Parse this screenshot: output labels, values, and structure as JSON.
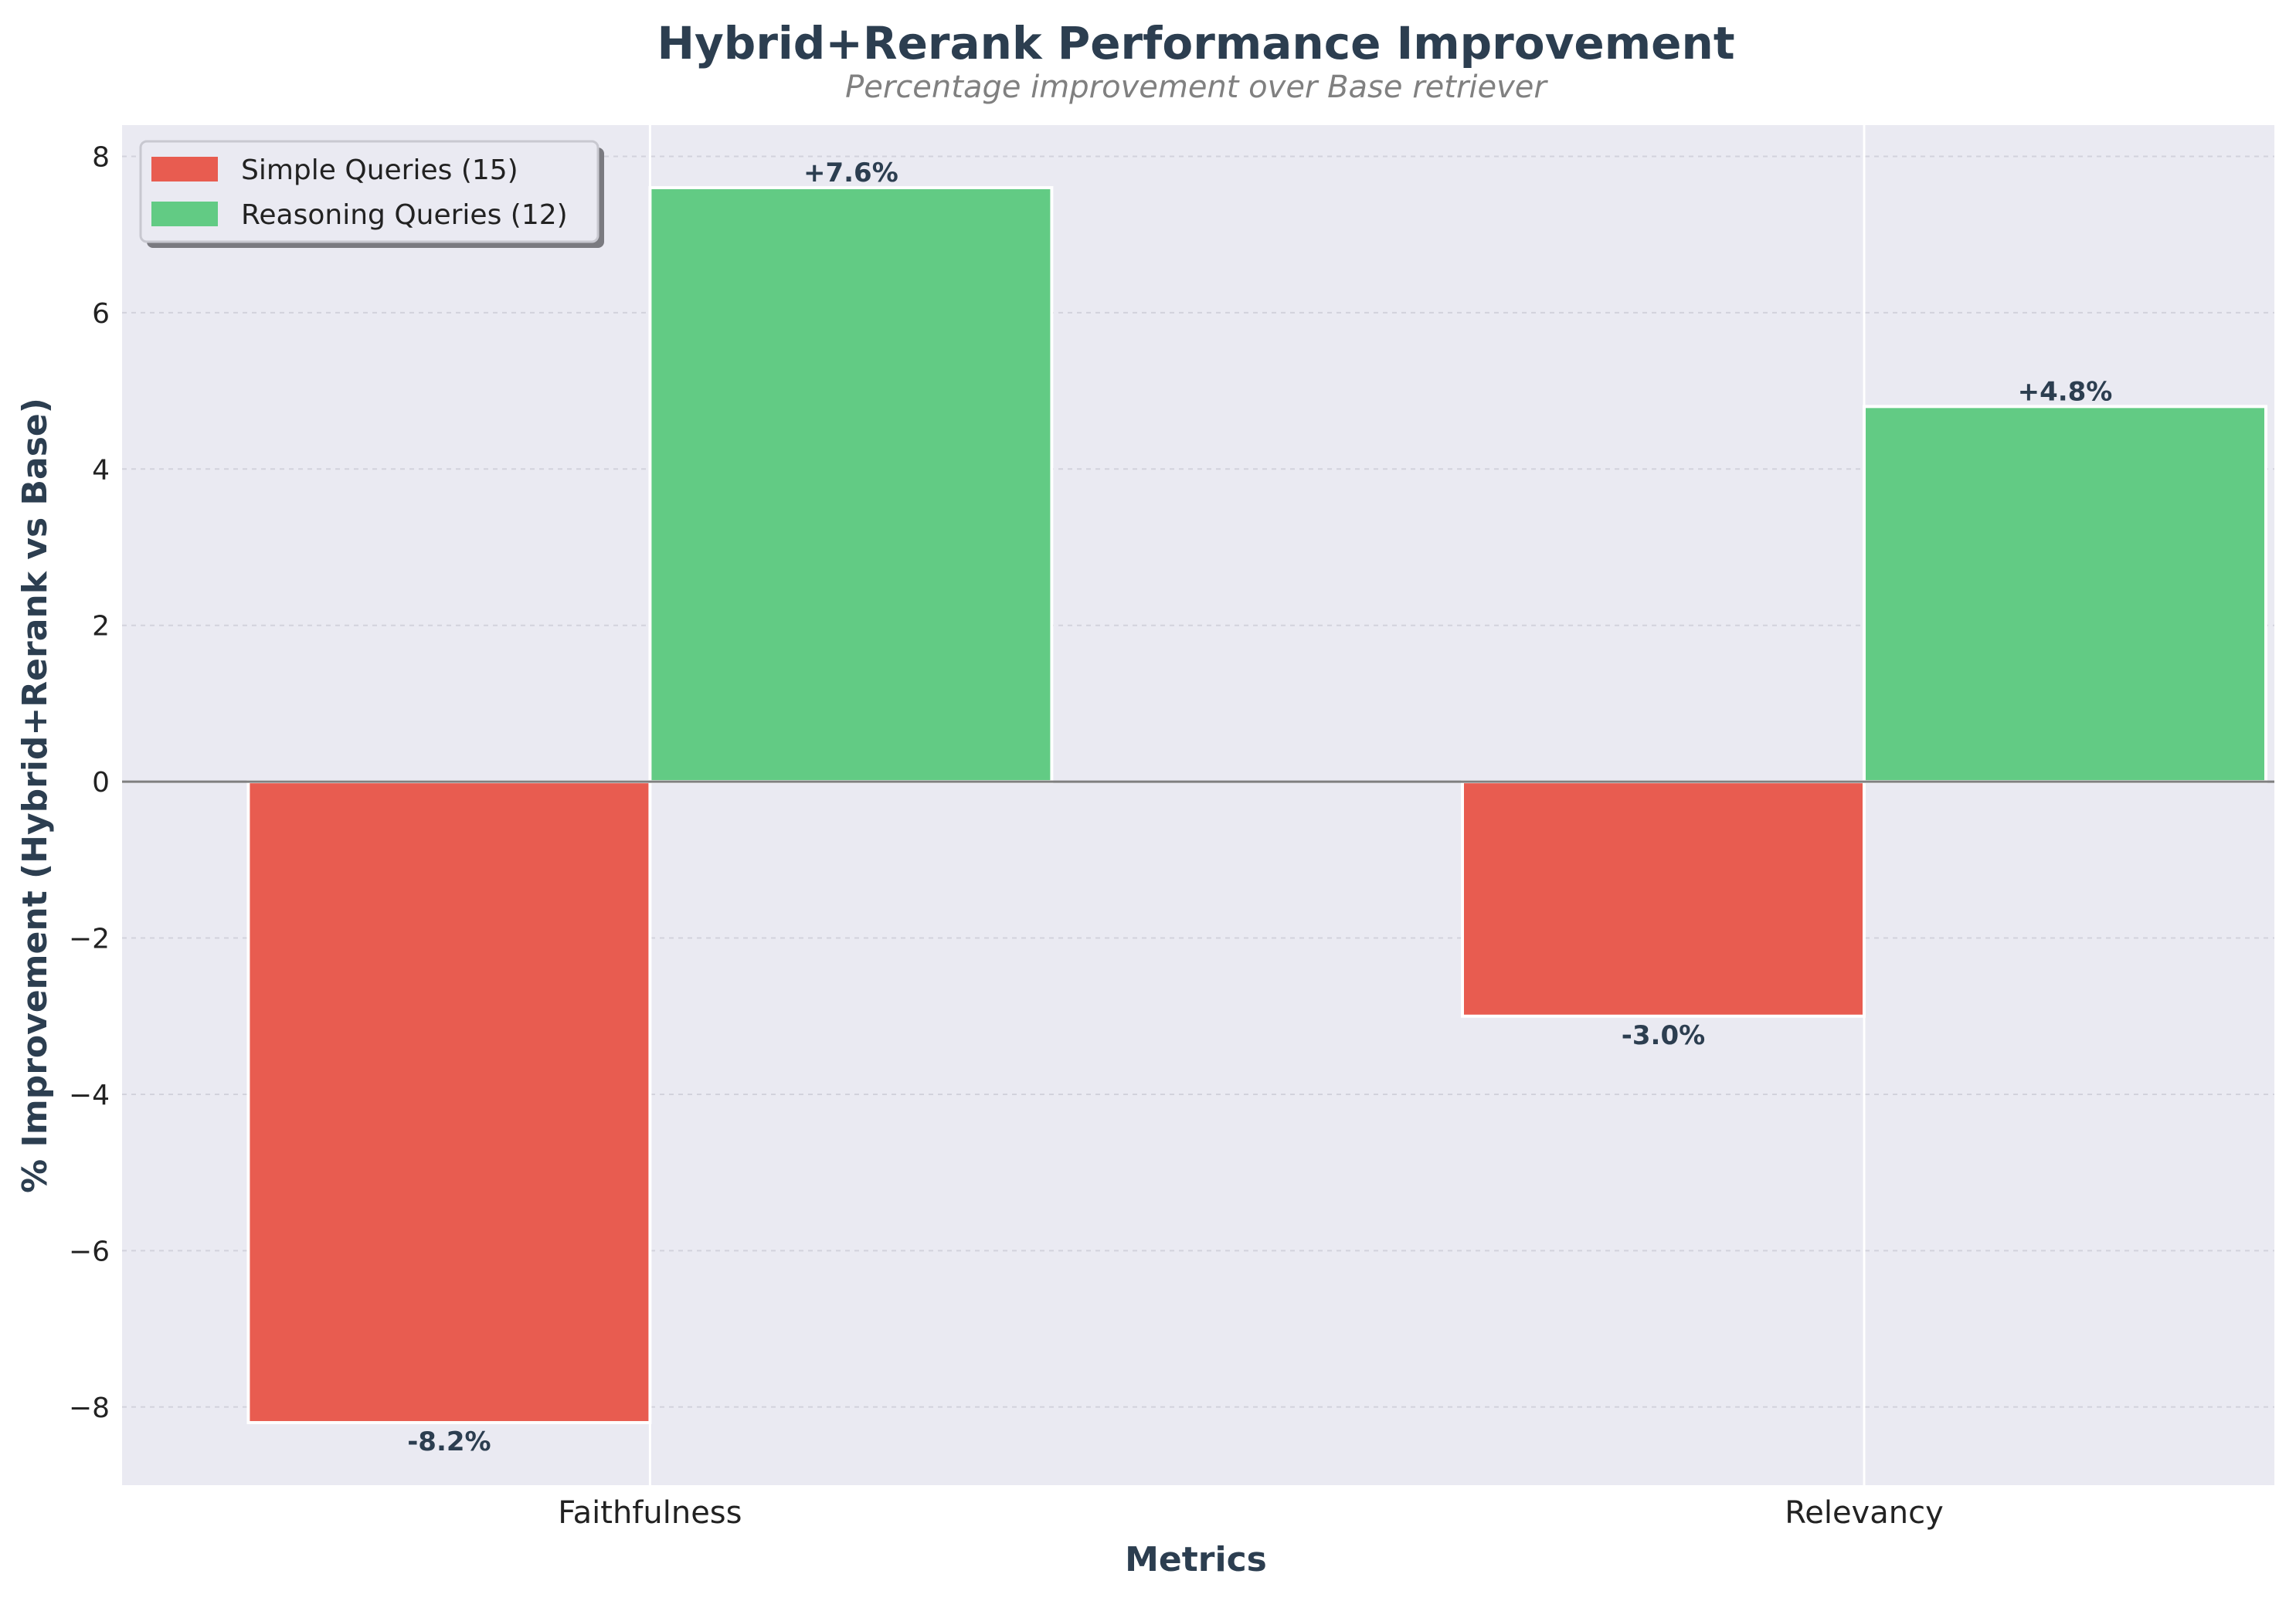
{
  "chart_data": {
    "type": "bar",
    "title": "Hybrid+Rerank Performance Improvement",
    "subtitle": "Percentage improvement over Base retriever",
    "xlabel": "Metrics",
    "ylabel": "% Improvement (Hybrid+Rerank vs Base)",
    "categories": [
      "Faithfulness",
      "Relevancy"
    ],
    "series": [
      {
        "name": "Simple Queries (15)",
        "values": [
          -8.2,
          -3.0
        ],
        "labels": [
          "-8.2%",
          "-3.0%"
        ],
        "color": "#e85c50"
      },
      {
        "name": "Reasoning Queries (12)",
        "values": [
          7.6,
          4.8
        ],
        "labels": [
          "+7.6%",
          "+4.8%"
        ],
        "color": "#62cb84"
      }
    ],
    "ylim": [
      -9,
      8.4
    ],
    "yticks": [
      -8,
      -6,
      -4,
      -2,
      0,
      2,
      4,
      6,
      8
    ],
    "ytick_labels": [
      "−8",
      "−6",
      "−4",
      "−2",
      "0",
      "2",
      "4",
      "6",
      "8"
    ],
    "grid": true,
    "legend_position": "top-left",
    "colors": {
      "plot_background": "#eaeaf2",
      "text": "#2c3e50",
      "subtitle": "#808080",
      "zero_line": "#808080"
    }
  }
}
